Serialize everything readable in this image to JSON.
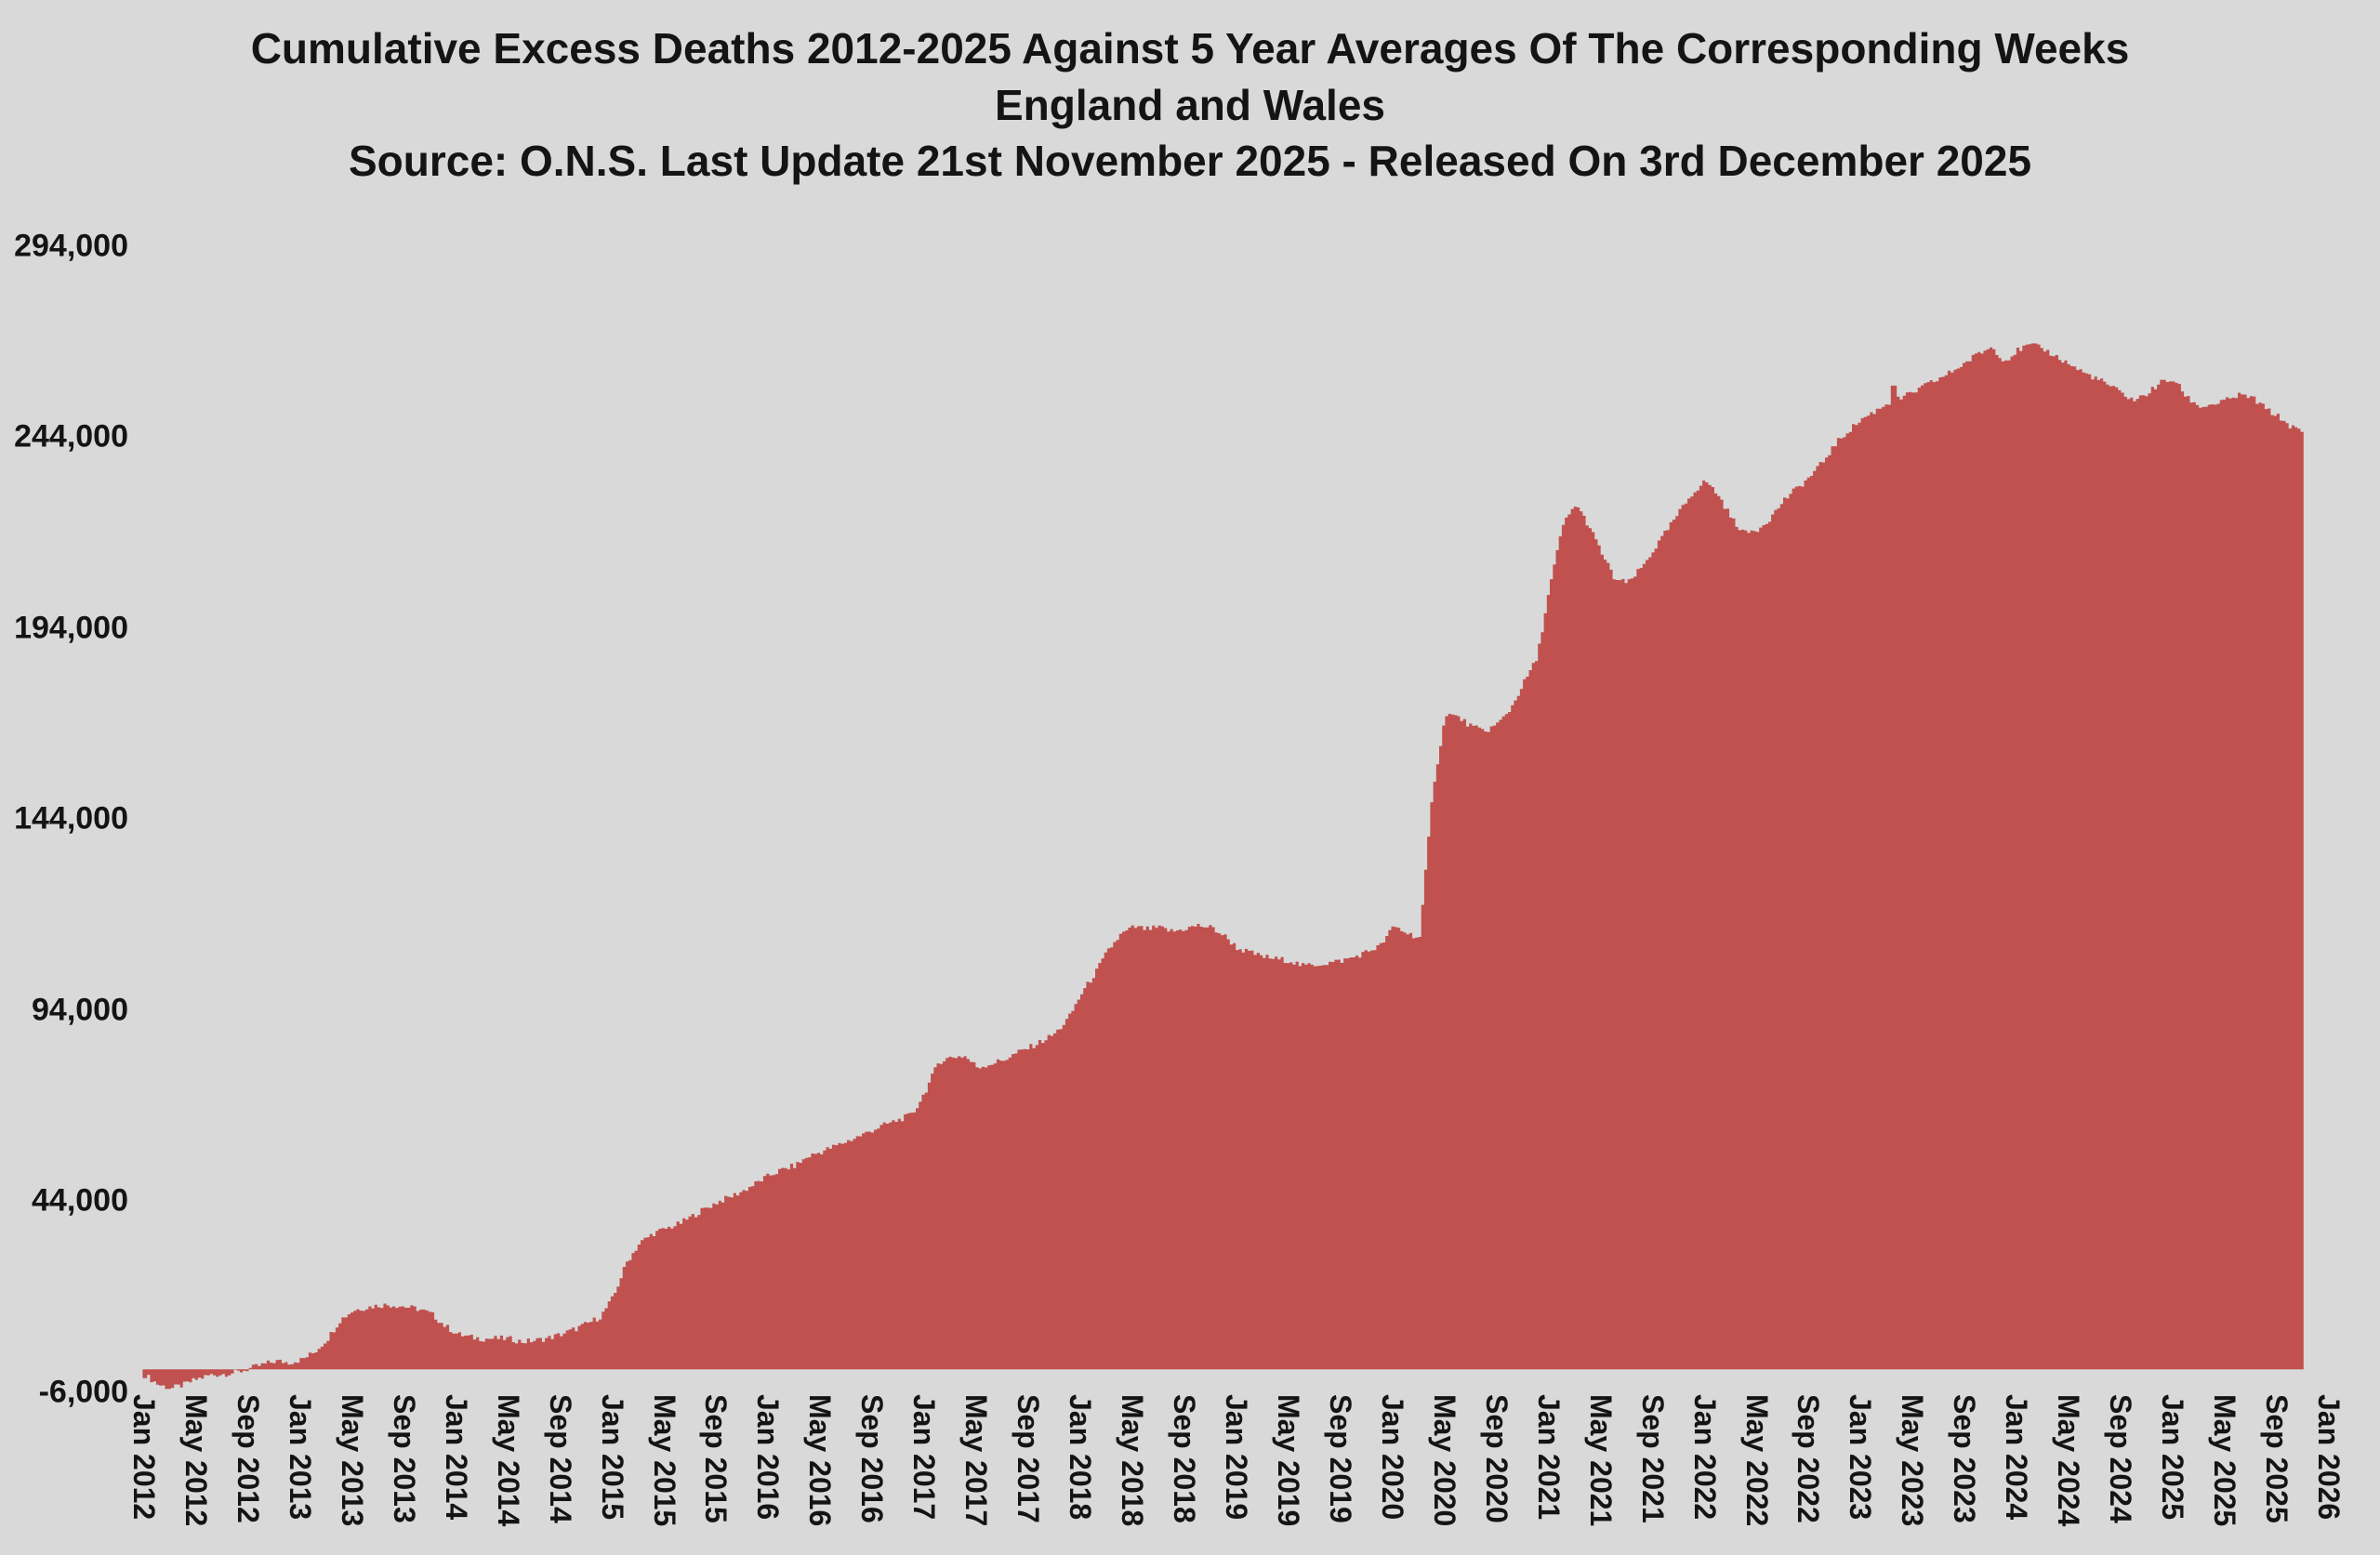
{
  "title": {
    "line1": "Cumulative Excess Deaths 2012-2025 Against 5 Year Averages Of The Corresponding Weeks",
    "line2": "England and Wales",
    "line3": "Source: O.N.S. Last Update 21st November 2025 - Released On 3rd December 2025"
  },
  "colors": {
    "background": "#d9d9d9",
    "area": "#c0514e",
    "text": "#141414"
  },
  "chart_data": {
    "type": "area",
    "title": "Cumulative Excess Deaths 2012-2025 Against 5 Year Averages Of The Corresponding Weeks",
    "subtitle": "England and Wales",
    "source_note": "Source: O.N.S. Last Update 21st November 2025 - Released On 3rd December 2025",
    "xlabel": "",
    "ylabel": "",
    "grid": false,
    "legend_position": "none",
    "ylim": [
      -6000,
      294000
    ],
    "y_tick_values": [
      294000,
      244000,
      194000,
      144000,
      94000,
      44000,
      -6000
    ],
    "y_tick_labels": [
      "294,000",
      "244,000",
      "194,000",
      "144,000",
      "94,000",
      "44,000",
      "-6,000"
    ],
    "x_start": "2012-01",
    "x_end": "2025-11",
    "x_resolution": "monthly (rendered as weekly bars)",
    "x_tick_labels": [
      "Jan 2012",
      "May 2012",
      "Sep 2012",
      "Jan 2013",
      "May 2013",
      "Sep 2013",
      "Jan 2014",
      "May 2014",
      "Sep 2014",
      "Jan 2015",
      "May 2015",
      "Sep 2015",
      "Jan 2016",
      "May 2016",
      "Sep 2016",
      "Jan 2017",
      "May 2017",
      "Sep 2017",
      "Jan 2018",
      "May 2018",
      "Sep 2018",
      "Jan 2019",
      "May 2019",
      "Sep 2019",
      "Jan 2020",
      "May 2020",
      "Sep 2020",
      "Jan 2021",
      "May 2021",
      "Sep 2021",
      "Jan 2022",
      "May 2022",
      "Sep 2022",
      "Jan 2023",
      "May 2023",
      "Sep 2023",
      "Jan 2024",
      "May 2024",
      "Sep 2024",
      "Jan 2025",
      "May 2025",
      "Sep 2025",
      "Jan 2026"
    ],
    "monthly_values": [
      -1500,
      -4000,
      -5000,
      -4000,
      -2500,
      -1500,
      -1200,
      -800,
      200,
      1200,
      2200,
      1800,
      2500,
      4500,
      8000,
      13000,
      15500,
      16200,
      16800,
      16900,
      16400,
      15800,
      14500,
      11500,
      9200,
      8400,
      8000,
      8100,
      8000,
      7200,
      7600,
      8200,
      9200,
      10500,
      12000,
      13800,
      19000,
      28000,
      33000,
      35500,
      36800,
      38000,
      40000,
      42000,
      43800,
      45200,
      46800,
      48800,
      50800,
      52300,
      53400,
      55800,
      57000,
      58400,
      59800,
      61200,
      62800,
      64200,
      65400,
      66800,
      73000,
      80500,
      81800,
      82000,
      79000,
      80000,
      81000,
      82800,
      84300,
      86000,
      88000,
      92000,
      98500,
      103500,
      109500,
      113800,
      115800,
      115200,
      115600,
      114600,
      115400,
      116200,
      115600,
      113400,
      110200,
      109000,
      108000,
      107400,
      107000,
      105600,
      106000,
      106400,
      107000,
      108000,
      109400,
      111000,
      116000,
      114200,
      113000,
      152000,
      171800,
      170600,
      168200,
      167000,
      169000,
      173000,
      179800,
      186000,
      205000,
      221000,
      226600,
      220800,
      213600,
      206800,
      205800,
      209600,
      214600,
      219600,
      224600,
      229600,
      232600,
      228600,
      222600,
      218800,
      220000,
      223000,
      227600,
      230600,
      233600,
      237600,
      242400,
      245800,
      248800,
      250800,
      253000,
      254200,
      255800,
      257800,
      259400,
      261400,
      263600,
      266000,
      267600,
      264000,
      266800,
      268200,
      267000,
      265000,
      263000,
      261000,
      259400,
      257600,
      255400,
      253600,
      255600,
      258400,
      259000,
      254400,
      252000,
      252600,
      253600,
      255000,
      254400,
      251600,
      249400,
      246800,
      245000
    ],
    "spike": {
      "month": "2023-03",
      "value": 257500
    },
    "notable_points": {
      "start_2012_dip": -5000,
      "flu_2015_rise_to": 36000,
      "flu_2018_plateau": 116000,
      "covid_apr_2020_jump_to": 172000,
      "second_wave_mar_2021_peak": 226600,
      "jan_2022_peak": 232600,
      "overall_peak_2023_24": 268200,
      "final_value_nov_2025": 245000
    }
  }
}
